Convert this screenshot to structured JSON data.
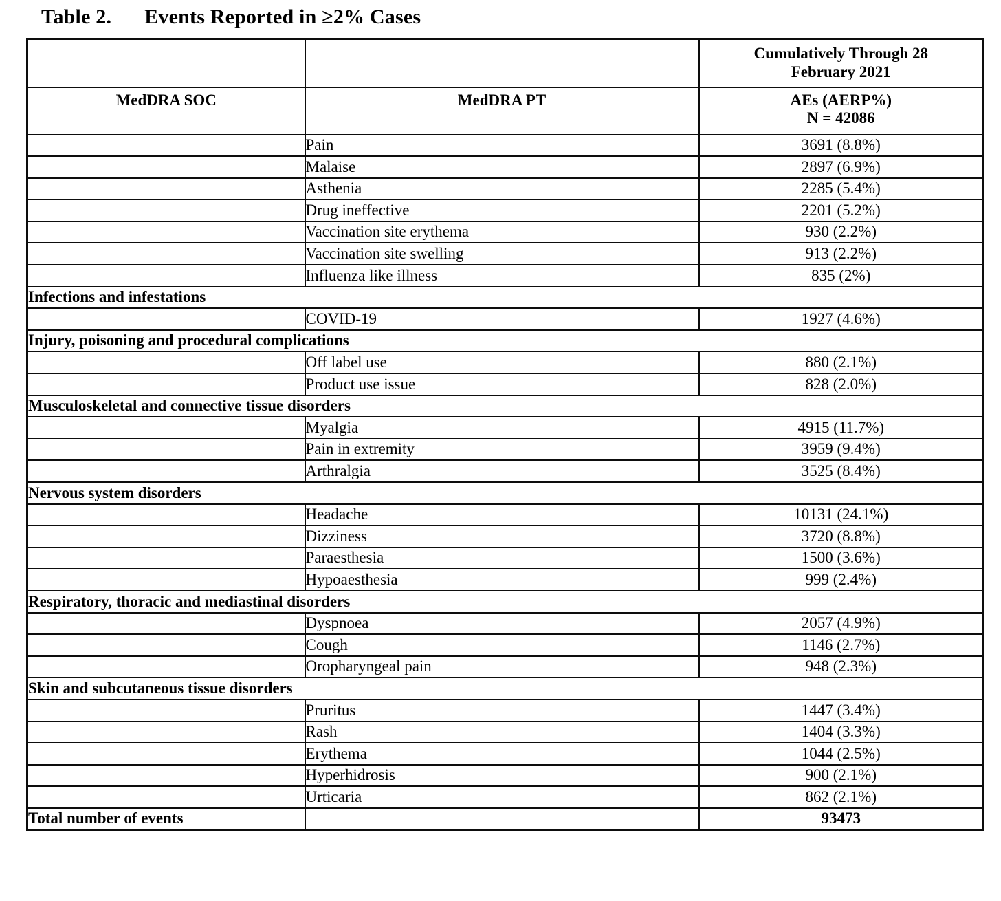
{
  "title": {
    "number": "Table 2.",
    "caption": "Events Reported in ≥2% Cases"
  },
  "table": {
    "header": {
      "soc": "MedDRA SOC",
      "pt": "MedDRA PT",
      "period_line1": "Cumulatively Through 28",
      "period_line2": "February 2021",
      "aes_line1": "AEs (AERP%)",
      "aes_line2": "N = 42086"
    },
    "rows": [
      {
        "type": "pt",
        "pt": "Pain",
        "value": "3691 (8.8%)"
      },
      {
        "type": "pt",
        "pt": "Malaise",
        "value": "2897 (6.9%)"
      },
      {
        "type": "pt",
        "pt": "Asthenia",
        "value": "2285 (5.4%)"
      },
      {
        "type": "pt",
        "pt": "Drug ineffective",
        "value": "2201 (5.2%)"
      },
      {
        "type": "pt",
        "pt": "Vaccination site erythema",
        "value": "930 (2.2%)"
      },
      {
        "type": "pt",
        "pt": "Vaccination site swelling",
        "value": "913 (2.2%)"
      },
      {
        "type": "pt",
        "pt": "Influenza like illness",
        "value": "835 (2%)"
      },
      {
        "type": "section",
        "label": "Infections and infestations"
      },
      {
        "type": "pt",
        "pt": "COVID-19",
        "value": "1927 (4.6%)"
      },
      {
        "type": "section",
        "label": "Injury, poisoning and procedural complications"
      },
      {
        "type": "pt",
        "pt": "Off label use",
        "value": "880 (2.1%)"
      },
      {
        "type": "pt",
        "pt": "Product use issue",
        "value": "828 (2.0%)"
      },
      {
        "type": "section",
        "label": "Musculoskeletal and connective tissue disorders"
      },
      {
        "type": "pt",
        "pt": "Myalgia",
        "value": "4915 (11.7%)"
      },
      {
        "type": "pt",
        "pt": "Pain in extremity",
        "value": "3959 (9.4%)"
      },
      {
        "type": "pt",
        "pt": "Arthralgia",
        "value": "3525 (8.4%)"
      },
      {
        "type": "section",
        "label": "Nervous system disorders"
      },
      {
        "type": "pt",
        "pt": "Headache",
        "value": "10131 (24.1%)"
      },
      {
        "type": "pt",
        "pt": "Dizziness",
        "value": "3720 (8.8%)"
      },
      {
        "type": "pt",
        "pt": "Paraesthesia",
        "value": "1500 (3.6%)"
      },
      {
        "type": "pt",
        "pt": "Hypoaesthesia",
        "value": "999 (2.4%)"
      },
      {
        "type": "section",
        "label": "Respiratory, thoracic and mediastinal disorders"
      },
      {
        "type": "pt",
        "pt": "Dyspnoea",
        "value": "2057 (4.9%)"
      },
      {
        "type": "pt",
        "pt": "Cough",
        "value": "1146 (2.7%)"
      },
      {
        "type": "pt",
        "pt": "Oropharyngeal pain",
        "value": "948 (2.3%)"
      },
      {
        "type": "section",
        "label": "Skin and subcutaneous tissue disorders"
      },
      {
        "type": "pt",
        "pt": "Pruritus",
        "value": "1447 (3.4%)"
      },
      {
        "type": "pt",
        "pt": "Rash",
        "value": "1404 (3.3%)"
      },
      {
        "type": "pt",
        "pt": "Erythema",
        "value": "1044 (2.5%)"
      },
      {
        "type": "pt",
        "pt": "Hyperhidrosis",
        "value": "900 (2.1%)"
      },
      {
        "type": "pt",
        "pt": "Urticaria",
        "value": "862 (2.1%)"
      },
      {
        "type": "total",
        "label": "Total number of events",
        "value": "93473"
      }
    ]
  }
}
